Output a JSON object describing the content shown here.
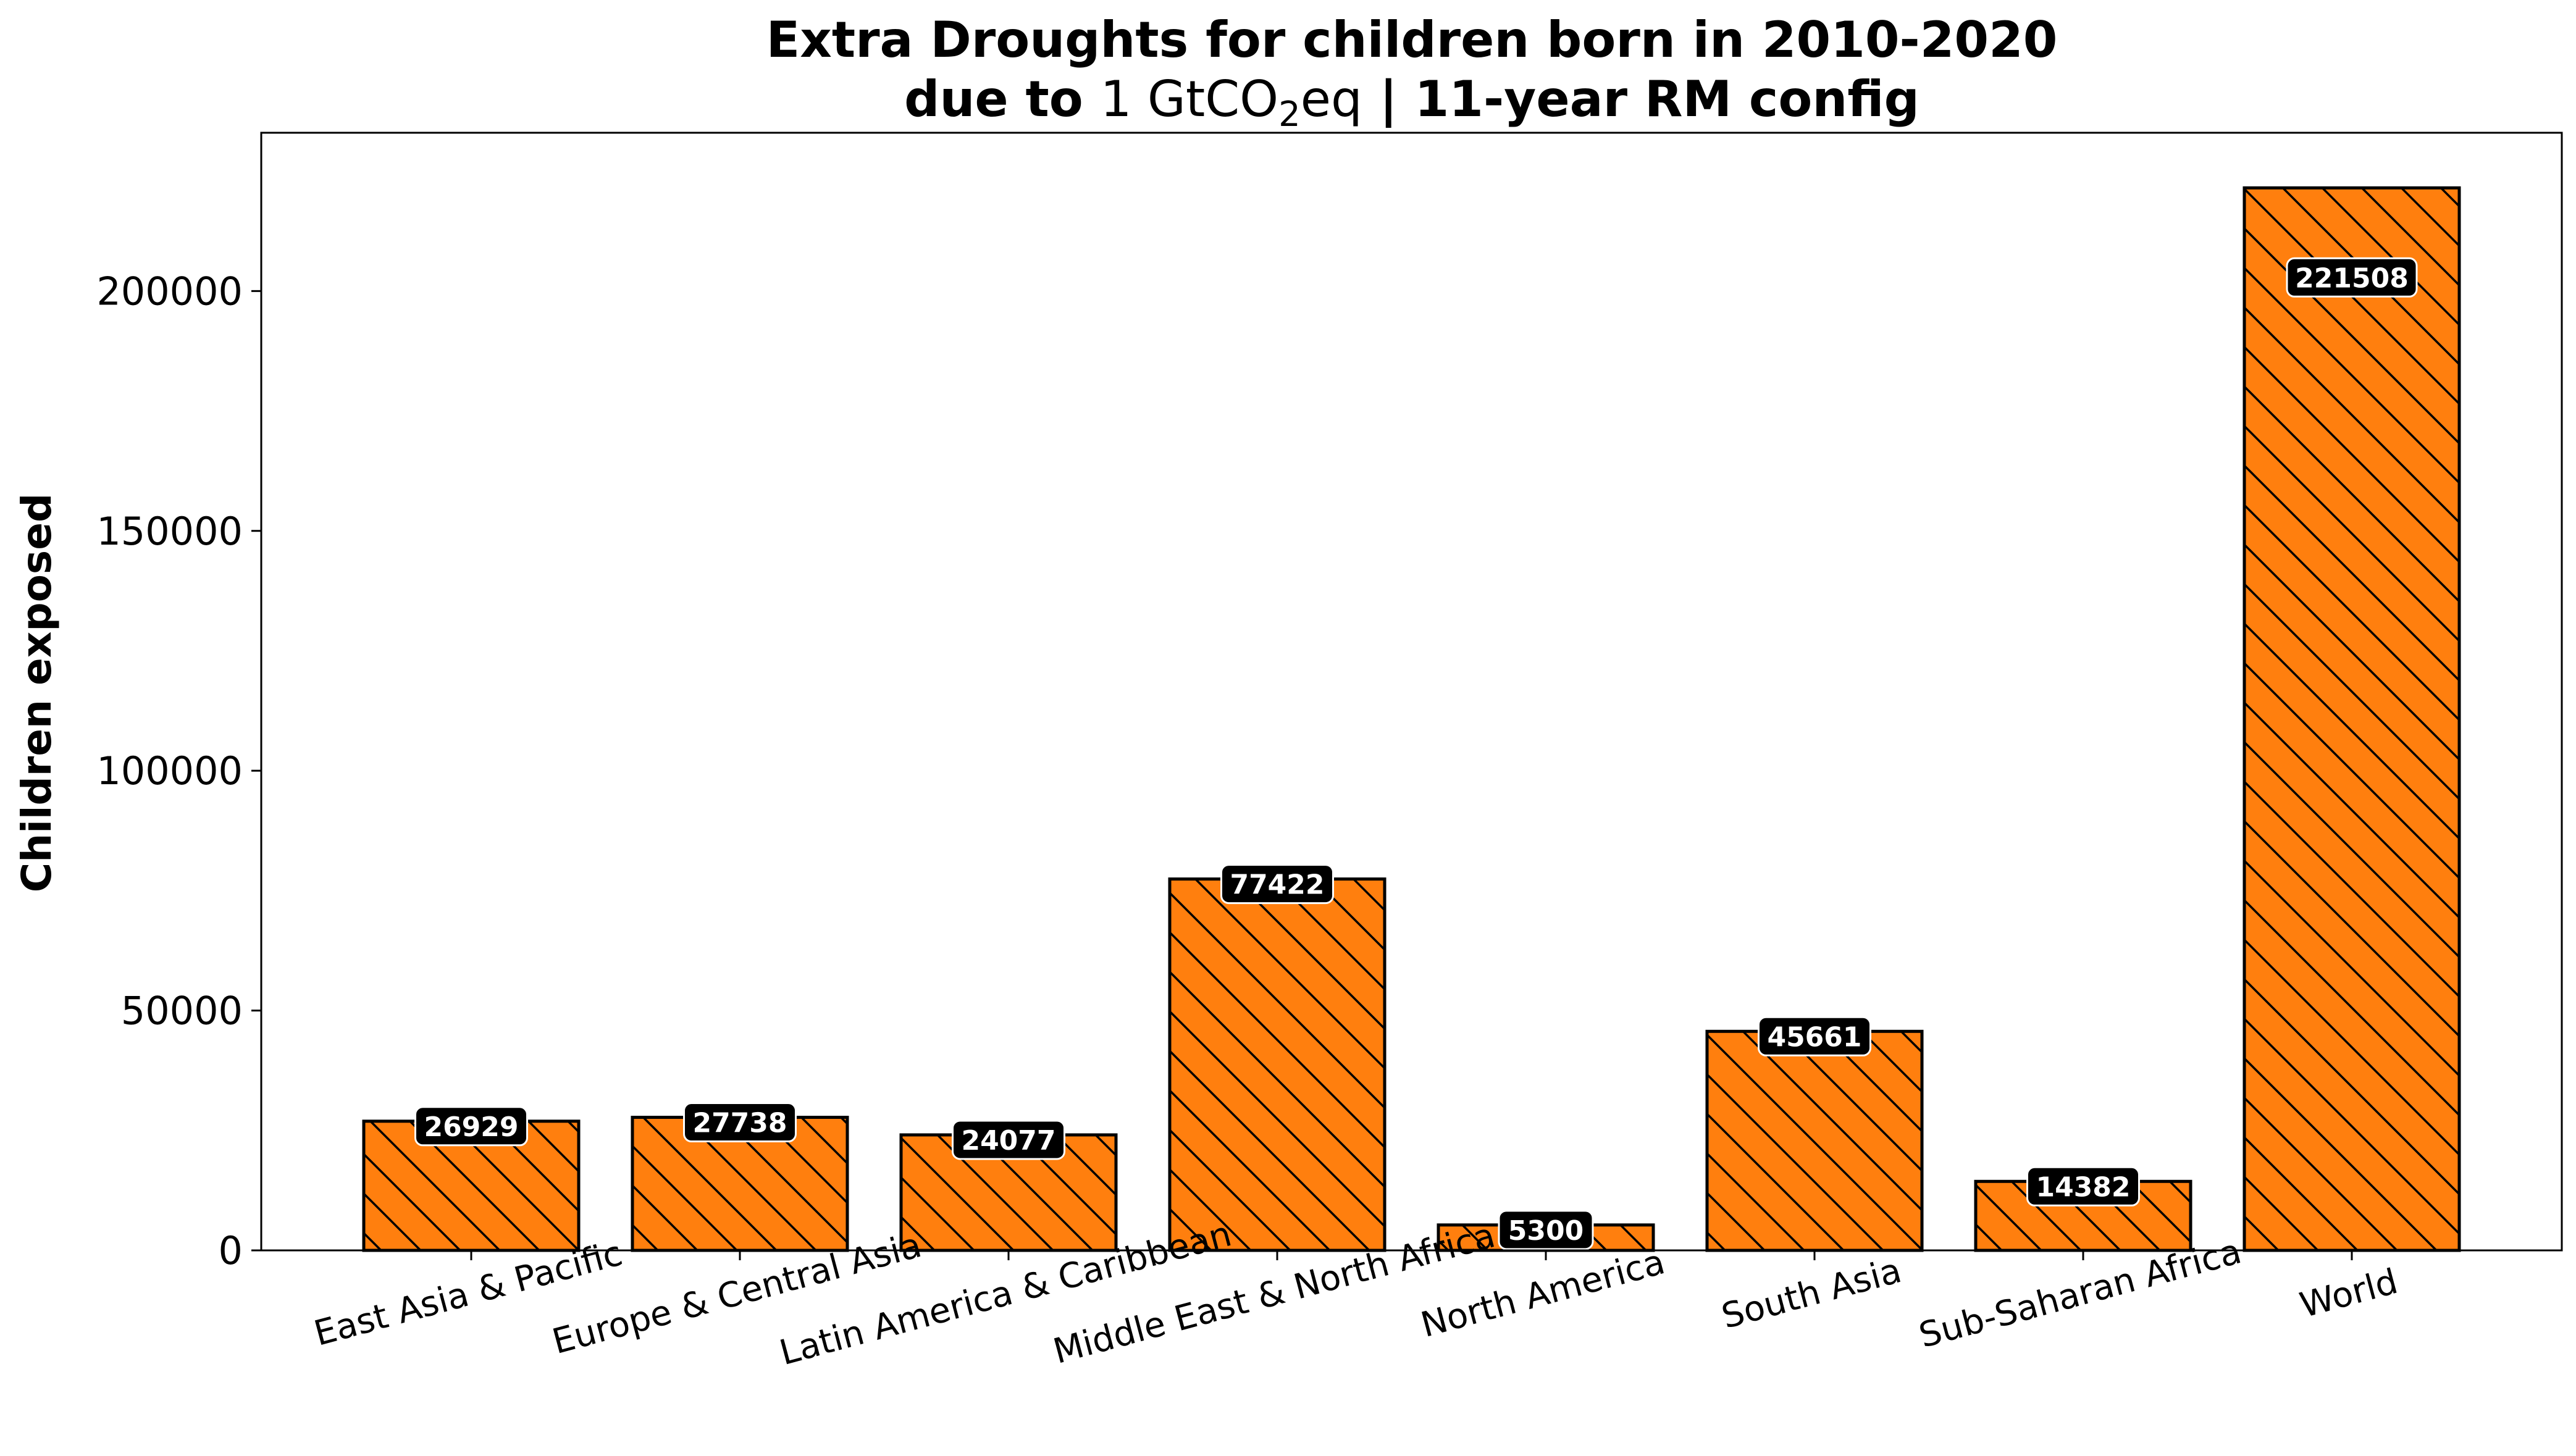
{
  "chart_data": {
    "type": "bar",
    "title_line1": "Extra Droughts for children born in 2010-2020",
    "title_line2_prefix": "due to ",
    "title_line2_math_a": "1 GtCO",
    "title_line2_math_sub": "2",
    "title_line2_math_b": "eq",
    "title_line2_suffix": " | 11-year RM config",
    "ylabel": "Children exposed",
    "xlabel": "",
    "ylim": [
      0,
      233000
    ],
    "yticks": [
      0,
      50000,
      100000,
      150000,
      200000
    ],
    "ytick_labels": [
      "0",
      "50000",
      "100000",
      "150000",
      "200000"
    ],
    "categories": [
      "East Asia & Pacific",
      "Europe & Central Asia",
      "Latin America & Caribbean",
      "Middle East & North Africa",
      "North America",
      "South Asia",
      "Sub-Saharan Africa",
      "World"
    ],
    "values": [
      26929,
      27738,
      24077,
      77422,
      5300,
      45661,
      14382,
      221508
    ],
    "value_labels": [
      "26929",
      "27738",
      "24077",
      "77422",
      "5300",
      "45661",
      "14382",
      "221508"
    ],
    "bar_color": "#ff7f0e",
    "edge_color": "#000000",
    "hatch": "diagonal-backslash",
    "label_box_color": "#000000",
    "label_text_color": "#ffffff",
    "grid": false,
    "legend": "none"
  }
}
